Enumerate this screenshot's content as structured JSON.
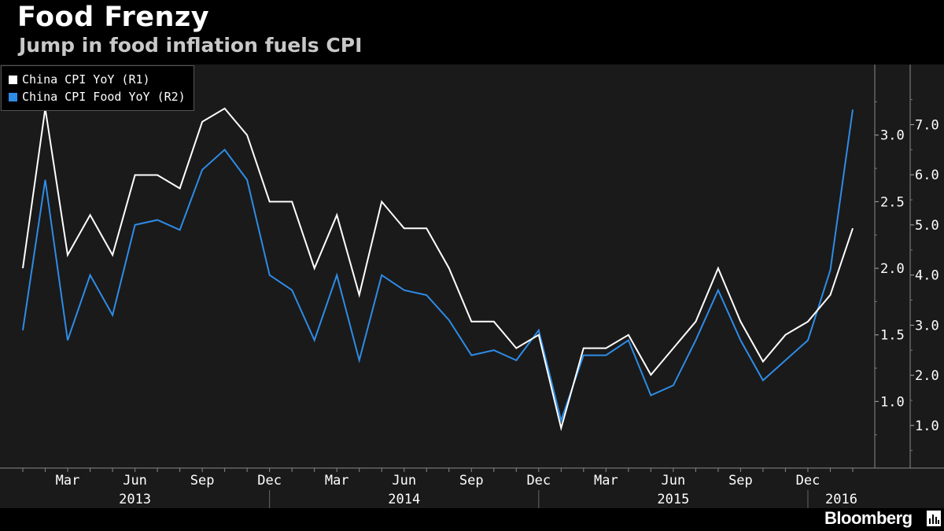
{
  "title": "Food Frenzy",
  "subtitle": "Jump in food inflation fuels CPI",
  "brand": "Bloomberg",
  "brand_icon": "bloomberg-chart-icon",
  "colors": {
    "background": "#000000",
    "plot_background": "#1a1a1a",
    "cpi": "#ffffff",
    "food": "#2e8ce6"
  },
  "legend": {
    "placement": "top-left",
    "items": [
      {
        "label": "China CPI YoY  (R1)",
        "color": "#ffffff"
      },
      {
        "label": "China CPI Food YoY  (R2)",
        "color": "#2e8ce6"
      }
    ]
  },
  "chart_data": {
    "type": "line",
    "x": [
      "2013-01",
      "2013-02",
      "2013-03",
      "2013-04",
      "2013-05",
      "2013-06",
      "2013-07",
      "2013-08",
      "2013-09",
      "2013-10",
      "2013-11",
      "2013-12",
      "2014-01",
      "2014-02",
      "2014-03",
      "2014-04",
      "2014-05",
      "2014-06",
      "2014-07",
      "2014-08",
      "2014-09",
      "2014-10",
      "2014-11",
      "2014-12",
      "2015-01",
      "2015-02",
      "2015-03",
      "2015-04",
      "2015-05",
      "2015-06",
      "2015-07",
      "2015-08",
      "2015-09",
      "2015-10",
      "2015-11",
      "2015-12",
      "2016-01",
      "2016-02"
    ],
    "series": [
      {
        "name": "China CPI YoY  (R1)",
        "axis": "R1",
        "values": [
          2.0,
          3.2,
          2.1,
          2.4,
          2.1,
          2.7,
          2.7,
          2.6,
          3.1,
          3.2,
          3.0,
          2.5,
          2.5,
          2.0,
          2.4,
          1.8,
          2.5,
          2.3,
          2.3,
          2.0,
          1.6,
          1.6,
          1.4,
          1.5,
          0.8,
          1.4,
          1.4,
          1.5,
          1.2,
          1.4,
          1.6,
          2.0,
          1.6,
          1.3,
          1.5,
          1.6,
          1.8,
          2.3
        ]
      },
      {
        "name": "China CPI Food YoY  (R2)",
        "axis": "R2",
        "values": [
          2.9,
          5.9,
          2.7,
          4.0,
          3.2,
          5.0,
          5.1,
          4.9,
          6.1,
          6.5,
          5.9,
          4.0,
          3.7,
          2.7,
          4.0,
          2.3,
          4.0,
          3.7,
          3.6,
          3.1,
          2.4,
          2.5,
          2.3,
          2.9,
          1.1,
          2.4,
          2.4,
          2.7,
          1.6,
          1.8,
          2.7,
          3.7,
          2.7,
          1.9,
          2.3,
          2.7,
          4.1,
          7.3
        ]
      }
    ],
    "x_tick_labels": [
      {
        "x": "2013-03",
        "label": "Mar"
      },
      {
        "x": "2013-06",
        "label": "Jun"
      },
      {
        "x": "2013-09",
        "label": "Sep"
      },
      {
        "x": "2013-12",
        "label": "Dec"
      },
      {
        "x": "2014-03",
        "label": "Mar"
      },
      {
        "x": "2014-06",
        "label": "Jun"
      },
      {
        "x": "2014-09",
        "label": "Sep"
      },
      {
        "x": "2014-12",
        "label": "Dec"
      },
      {
        "x": "2015-03",
        "label": "Mar"
      },
      {
        "x": "2015-06",
        "label": "Jun"
      },
      {
        "x": "2015-09",
        "label": "Sep"
      },
      {
        "x": "2015-12",
        "label": "Dec"
      }
    ],
    "year_labels": [
      {
        "label": "2013",
        "from": "2012-12",
        "to": "2013-12"
      },
      {
        "label": "2014",
        "from": "2013-12",
        "to": "2014-12"
      },
      {
        "label": "2015",
        "from": "2014-12",
        "to": "2015-12"
      },
      {
        "label": "2016",
        "from": "2015-12",
        "to": "2016-03"
      }
    ],
    "x_range": [
      "2012-12",
      "2016-03"
    ],
    "y_axes": {
      "R1": {
        "ticks": [
          1.0,
          1.5,
          2.0,
          2.5,
          3.0
        ],
        "tick_labels": [
          "1.0",
          "1.5",
          "2.0",
          "2.5",
          "3.0"
        ],
        "range": [
          0.5,
          3.53
        ]
      },
      "R2": {
        "ticks": [
          1.0,
          2.0,
          3.0,
          4.0,
          5.0,
          6.0,
          7.0
        ],
        "tick_labels": [
          "1.0",
          "2.0",
          "3.0",
          "4.0",
          "5.0",
          "6.0",
          "7.0"
        ],
        "range": [
          0.15,
          8.2
        ]
      }
    },
    "grid": false
  }
}
